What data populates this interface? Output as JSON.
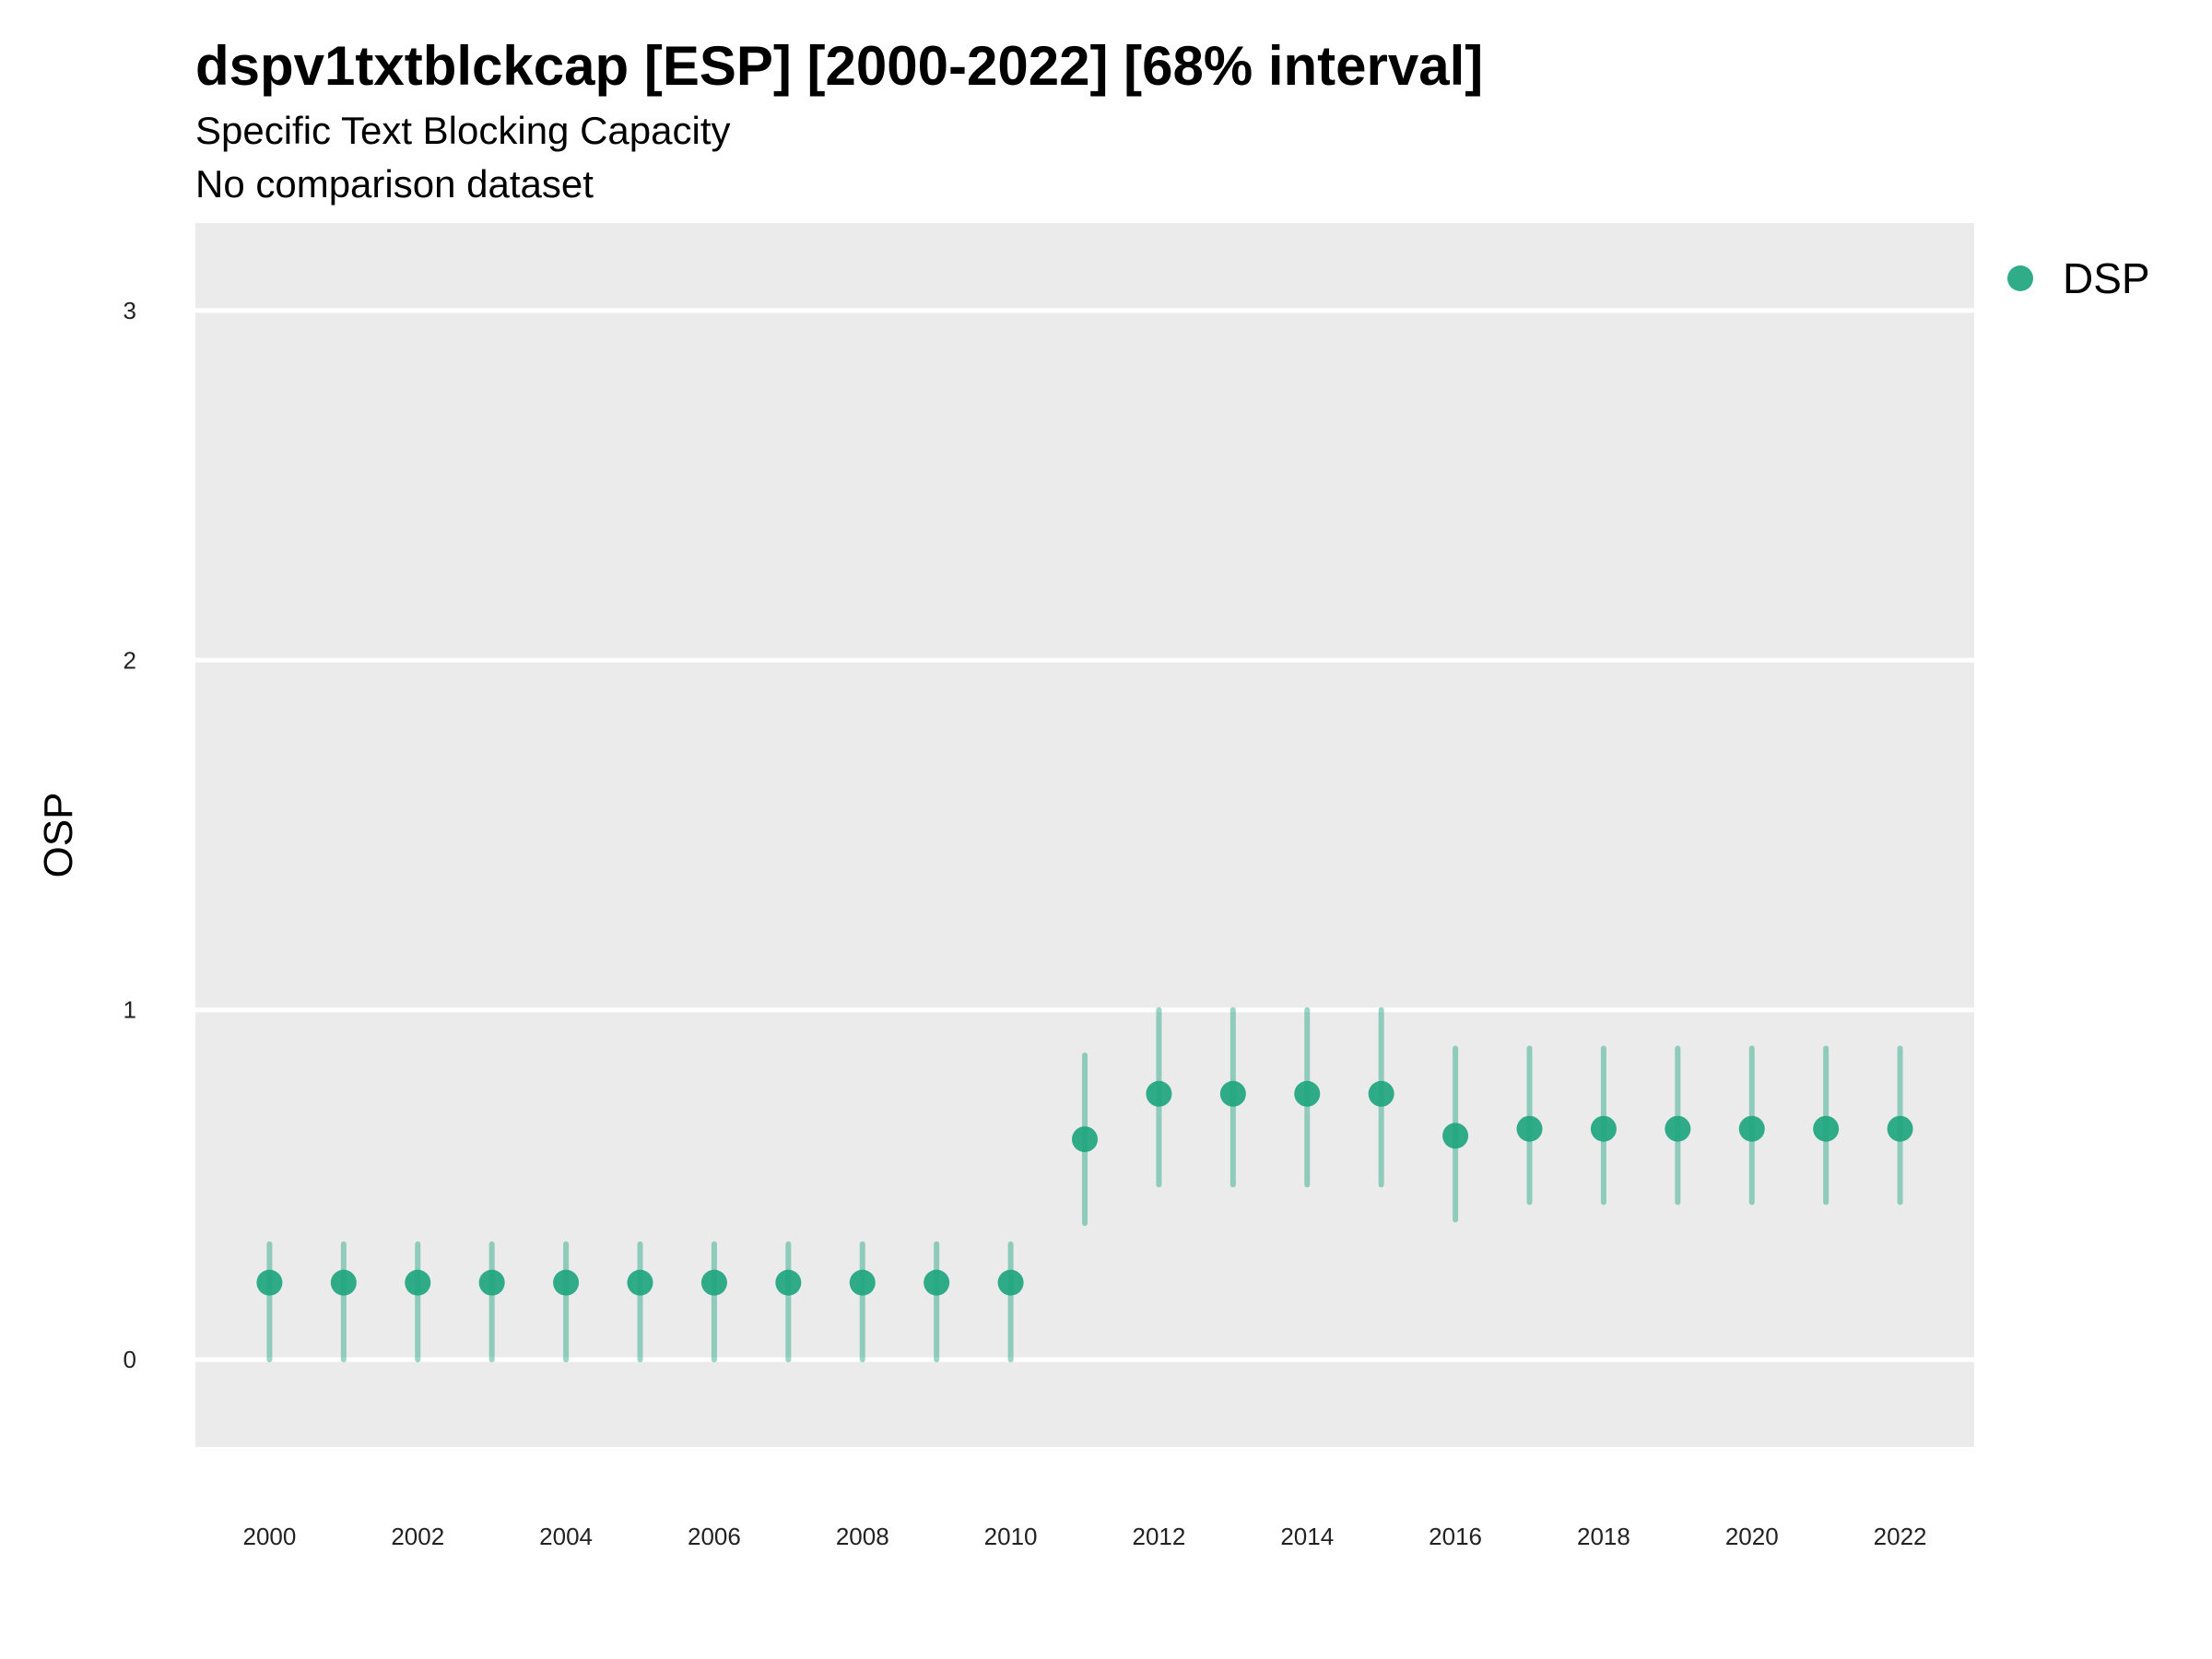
{
  "chart_data": {
    "type": "scatter",
    "title": "dspv1txtblckcap [ESP] [2000-2022] [68% interval]",
    "subtitle": "Specific Text Blocking Capacity",
    "caption": "No comparison dataset",
    "xlabel": "",
    "ylabel": "OSP",
    "xlim": [
      1999,
      2023
    ],
    "ylim": [
      -0.25,
      3.25
    ],
    "x_ticks": [
      2000,
      2002,
      2004,
      2006,
      2008,
      2010,
      2012,
      2014,
      2016,
      2018,
      2020,
      2022
    ],
    "y_ticks": [
      0,
      1,
      2,
      3
    ],
    "grid": true,
    "legend_position": "right",
    "series": [
      {
        "name": "DSP",
        "color": "#1fa57e",
        "x": [
          2000,
          2001,
          2002,
          2003,
          2004,
          2005,
          2006,
          2007,
          2008,
          2009,
          2010,
          2011,
          2012,
          2013,
          2014,
          2015,
          2016,
          2017,
          2018,
          2019,
          2020,
          2021,
          2022
        ],
        "y": [
          0.22,
          0.22,
          0.22,
          0.22,
          0.22,
          0.22,
          0.22,
          0.22,
          0.22,
          0.22,
          0.22,
          0.63,
          0.76,
          0.76,
          0.76,
          0.76,
          0.64,
          0.66,
          0.66,
          0.66,
          0.66,
          0.66,
          0.66
        ],
        "lower": [
          0.0,
          0.0,
          0.0,
          0.0,
          0.0,
          0.0,
          0.0,
          0.0,
          0.0,
          0.0,
          0.0,
          0.39,
          0.5,
          0.5,
          0.5,
          0.5,
          0.4,
          0.45,
          0.45,
          0.45,
          0.45,
          0.45,
          0.45
        ],
        "upper": [
          0.33,
          0.33,
          0.33,
          0.33,
          0.33,
          0.33,
          0.33,
          0.33,
          0.33,
          0.33,
          0.33,
          0.87,
          1.0,
          1.0,
          1.0,
          1.0,
          0.89,
          0.89,
          0.89,
          0.89,
          0.89,
          0.89,
          0.89
        ]
      }
    ]
  }
}
